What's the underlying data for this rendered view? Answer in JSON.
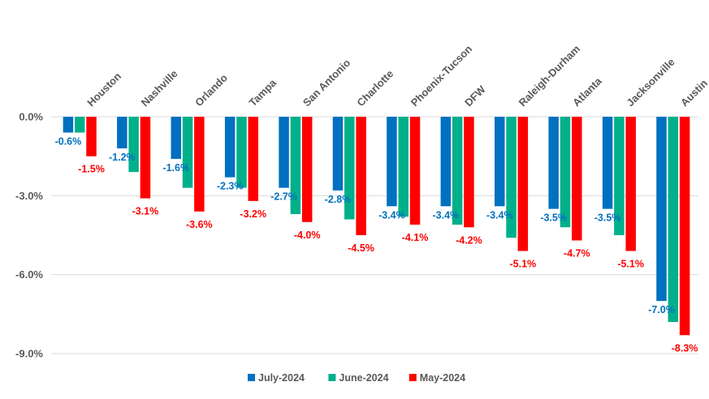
{
  "chart_data": {
    "type": "bar",
    "title": "",
    "xlabel": "",
    "ylabel": "",
    "ylim": [
      -9.0,
      0.0
    ],
    "yticks": [
      0.0,
      -3.0,
      -6.0,
      -9.0
    ],
    "ytick_labels": [
      "0.0%",
      "-3.0%",
      "-6.0%",
      "-9.0%"
    ],
    "grid": true,
    "legend_position": "bottom",
    "categories": [
      "Houston",
      "Nashville",
      "Orlando",
      "Tampa",
      "San Antonio",
      "Charlotte",
      "Phoenix-Tucson",
      "DFW",
      "Raleigh-Durham",
      "Atlanta",
      "Jacksonville",
      "Austin"
    ],
    "series": [
      {
        "name": "July-2024",
        "color": "#0070C0",
        "values": [
          -0.6,
          -1.2,
          -1.6,
          -2.3,
          -2.7,
          -2.8,
          -3.4,
          -3.4,
          -3.4,
          -3.5,
          -3.5,
          -7.0
        ],
        "labels": [
          "-0.6%",
          "-1.2%",
          "-1.6%",
          "-2.3%",
          "-2.7%",
          "-2.8%",
          "-3.4%",
          "-3.4%",
          "-3.4%",
          "-3.5%",
          "-3.5%",
          "-7.0%"
        ]
      },
      {
        "name": "June-2024",
        "color": "#00B08A",
        "values": [
          -0.6,
          -2.1,
          -2.7,
          -2.7,
          -3.7,
          -3.9,
          -3.8,
          -4.1,
          -4.6,
          -4.2,
          -4.5,
          -7.8
        ],
        "labels": []
      },
      {
        "name": "May-2024",
        "color": "#FF0000",
        "values": [
          -1.5,
          -3.1,
          -3.6,
          -3.2,
          -4.0,
          -4.5,
          -4.1,
          -4.2,
          -5.1,
          -4.7,
          -5.1,
          -8.3
        ],
        "labels": [
          "-1.5%",
          "-3.1%",
          "-3.6%",
          "-3.2%",
          "-4.0%",
          "-4.5%",
          "-4.1%",
          "-4.2%",
          "-5.1%",
          "-4.7%",
          "-5.1%",
          "-8.3%"
        ]
      }
    ]
  }
}
